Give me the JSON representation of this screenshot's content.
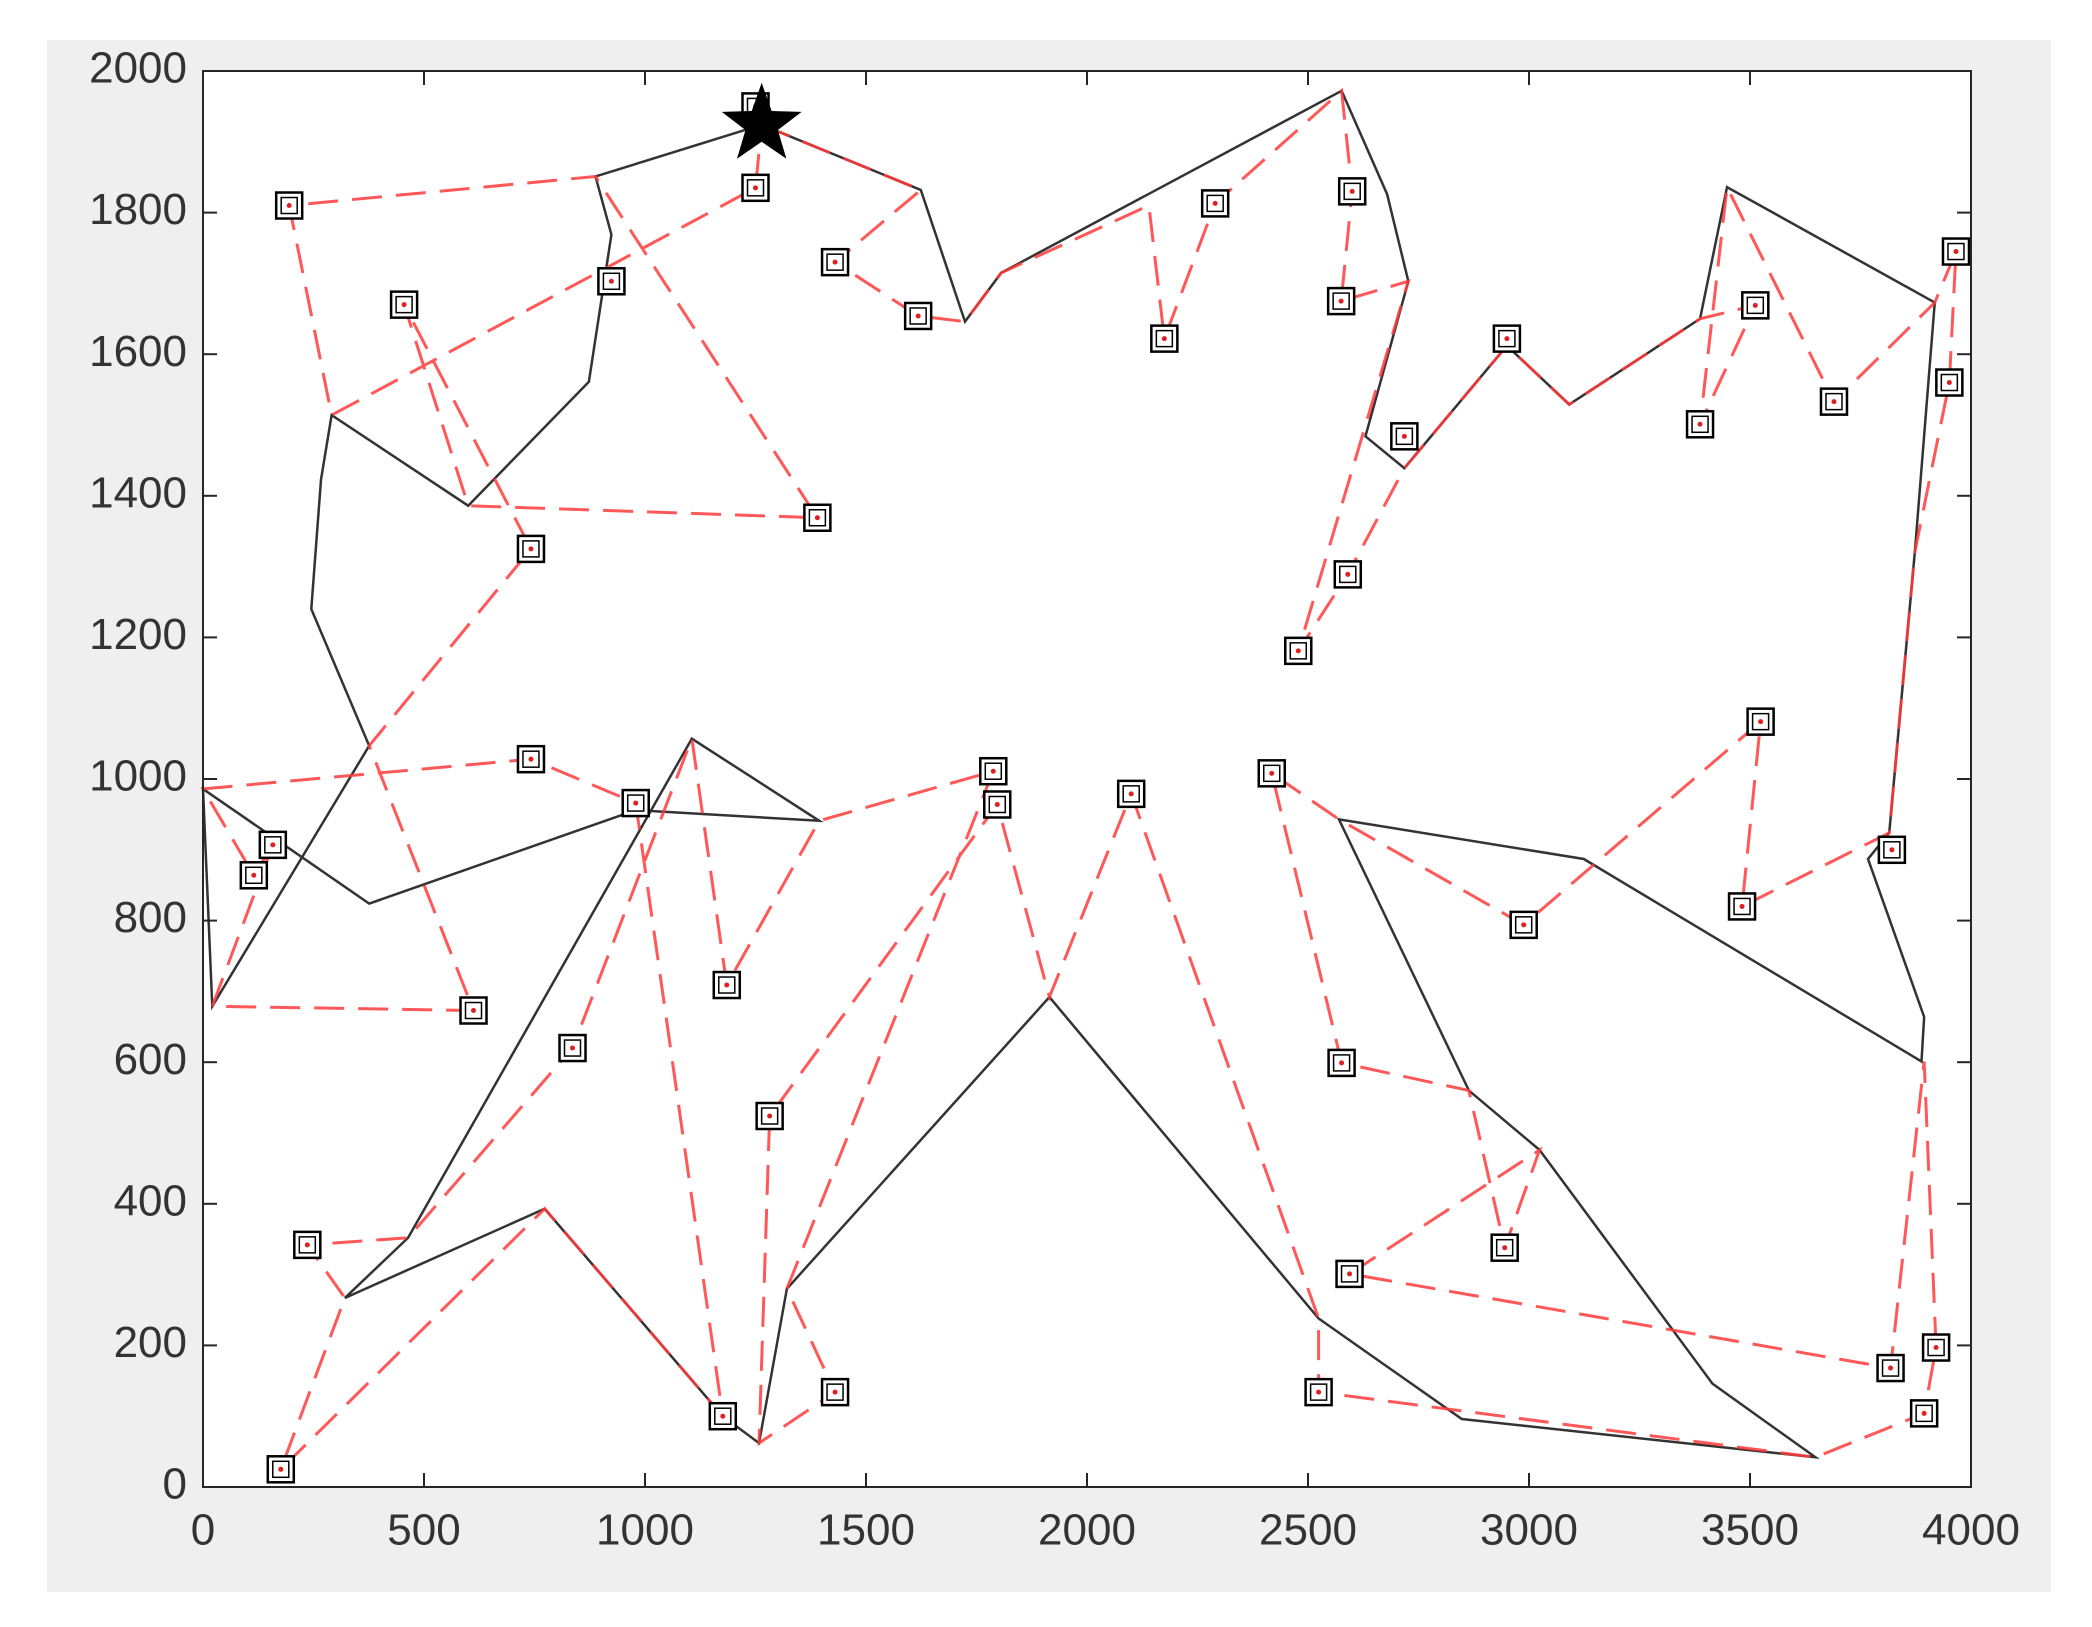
{
  "chart_data": {
    "type": "scatter",
    "xlim": [
      0,
      4000
    ],
    "ylim": [
      0,
      2000
    ],
    "xticks": [
      0,
      500,
      1000,
      1500,
      2000,
      2500,
      3000,
      3500,
      4000
    ],
    "yticks": [
      0,
      200,
      400,
      600,
      800,
      1000,
      1200,
      1400,
      1600,
      1800,
      2000
    ],
    "grid": false,
    "series": [
      {
        "marker": "line",
        "color": "#333333",
        "x": [
          1264,
          888,
          924,
          873,
          600,
          291,
          267,
          245,
          376,
          21,
          0,
          376,
          979,
          1394,
          1106,
          464,
          321,
          773,
          1176,
          1258,
          1321,
          1915,
          2524,
          2848,
          3648,
          3415,
          3024,
          2864,
          2570,
          3124,
          3888,
          3894,
          3767,
          3815,
          3873,
          3918,
          3448,
          3387,
          3091,
          2950,
          2718,
          2630,
          2727,
          2679,
          2576,
          1806,
          1724,
          1624,
          1264
        ],
        "values": [
          1924,
          1851,
          1769,
          1561,
          1386,
          1514,
          1423,
          1240,
          1047,
          679,
          986,
          824,
          956,
          941,
          1057,
          352,
          267,
          393,
          100,
          62,
          280,
          692,
          238,
          96,
          42,
          146,
          476,
          560,
          943,
          887,
          601,
          664,
          887,
          924,
          1321,
          1673,
          1836,
          1650,
          1529,
          1612,
          1439,
          1484,
          1703,
          1826,
          1972,
          1715,
          1646,
          1832,
          1924
        ]
      },
      {
        "marker": "dashed",
        "color": "#ff3b3b",
        "x": [
          1264,
          1624,
          1430,
          1618,
          1724,
          1806,
          2140,
          2175,
          2290,
          2576,
          2600,
          2575,
          2727,
          2478,
          2590,
          2718,
          2950,
          3091,
          3387,
          3512,
          3387,
          3448,
          3690,
          3918,
          3966,
          3951,
          3873,
          3815,
          3482,
          3524,
          2988,
          2570,
          2418,
          2576,
          2864,
          2945,
          3024,
          2594,
          3818,
          3894,
          3921,
          3894,
          3648,
          2524,
          2524,
          2100,
          1915,
          1797,
          1282,
          1258,
          1430,
          1321,
          1788,
          1394,
          1185,
          1106,
          836,
          464,
          236,
          321,
          176,
          773,
          1176,
          979,
          742,
          0,
          115,
          158,
          21,
          612,
          376,
          742,
          455,
          600,
          1390,
          888,
          195,
          291,
          1250,
          1264
        ],
        "values": [
          1924,
          1832,
          1730,
          1654,
          1646,
          1715,
          1810,
          1622,
          1813,
          1972,
          1830,
          1675,
          1703,
          1181,
          1289,
          1439,
          1612,
          1529,
          1650,
          1669,
          1501,
          1836,
          1533,
          1673,
          1745,
          1560,
          1321,
          924,
          820,
          1081,
          794,
          943,
          1008,
          599,
          560,
          338,
          476,
          301,
          168,
          601,
          197,
          104,
          42,
          134,
          238,
          979,
          692,
          964,
          524,
          62,
          134,
          280,
          1011,
          941,
          709,
          1057,
          620,
          352,
          342,
          267,
          25,
          393,
          100,
          966,
          1028,
          986,
          864,
          907,
          679,
          673,
          1047,
          1325,
          1670,
          1386,
          1369,
          1851,
          1810,
          1514,
          1835,
          1924
        ]
      },
      {
        "marker": "square",
        "color": "#000000",
        "x": [
          195,
          455,
          742,
          924,
          1250,
          1250,
          1390,
          1430,
          1618,
          2290,
          2175,
          2600,
          2575,
          2718,
          2590,
          2478,
          2950,
          3387,
          3512,
          3690,
          3966,
          3951,
          3524,
          3482,
          3821,
          2988,
          2418,
          2100,
          1788,
          1797,
          1185,
          979,
          742,
          158,
          115,
          612,
          836,
          1282,
          236,
          176,
          1176,
          1430,
          2576,
          2594,
          2945,
          2524,
          3818,
          3921,
          3894
        ],
        "values": [
          1810,
          1670,
          1325,
          1703,
          1835,
          1950,
          1369,
          1730,
          1654,
          1813,
          1622,
          1830,
          1675,
          1484,
          1289,
          1181,
          1622,
          1501,
          1669,
          1533,
          1745,
          1560,
          1081,
          820,
          900,
          794,
          1008,
          979,
          1011,
          964,
          709,
          966,
          1028,
          907,
          864,
          673,
          620,
          524,
          342,
          25,
          100,
          134,
          599,
          301,
          338,
          134,
          168,
          197,
          104
        ]
      },
      {
        "marker": "star",
        "color": "#000000",
        "x": [
          1264
        ],
        "values": [
          1924
        ]
      }
    ]
  }
}
